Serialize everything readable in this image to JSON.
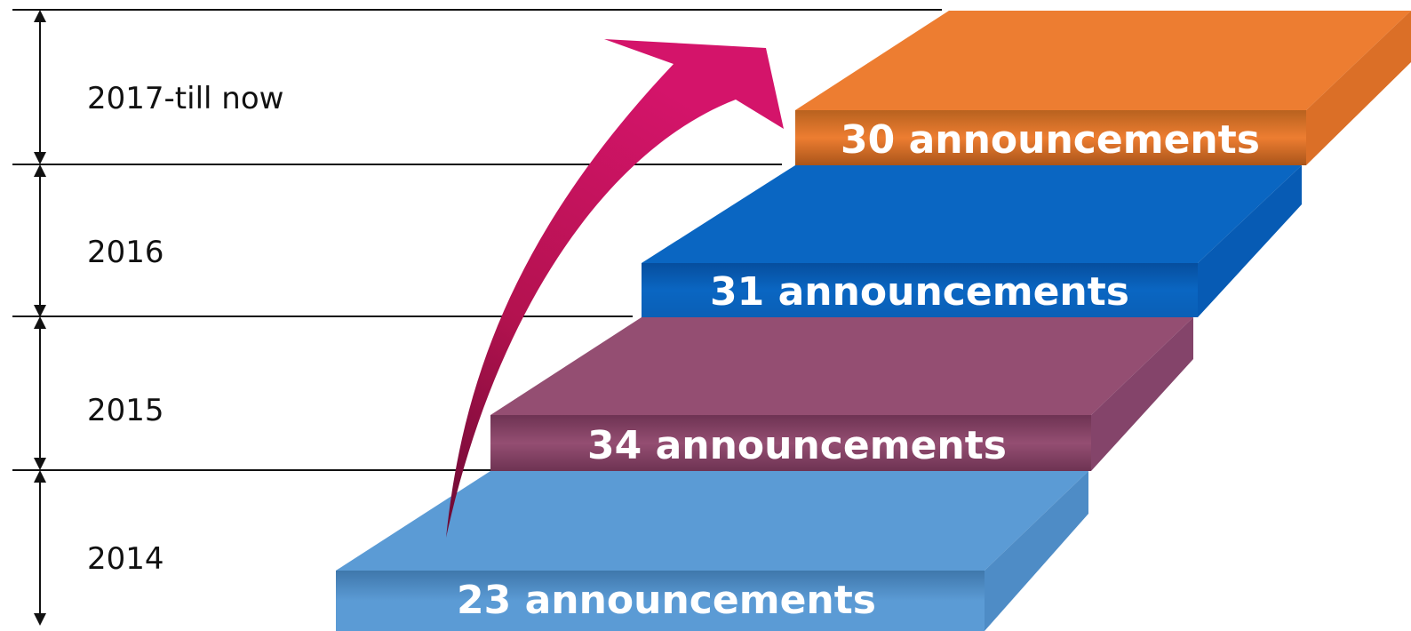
{
  "periods": [
    {
      "year": "2017-till now",
      "count_label": "30 announcements",
      "count": 30
    },
    {
      "year": "2016",
      "count_label": "31 announcements",
      "count": 31
    },
    {
      "year": "2015",
      "count_label": "34 announcements",
      "count": 34
    },
    {
      "year": "2014",
      "count_label": "23 announcements",
      "count": 23
    }
  ],
  "colors": {
    "step_2017": {
      "top": "#ED7D31",
      "front": "#B35A1C",
      "side": "#C8621F"
    },
    "step_2016": {
      "top": "#0A66C2",
      "front": "#064A96",
      "side": "#0558B0"
    },
    "step_2015": {
      "top": "#944E72",
      "front": "#6F3353",
      "side": "#7F3E60"
    },
    "step_2014": {
      "top": "#5B9BD5",
      "front": "#3E76A8",
      "side": "#4A86BE"
    },
    "arrow": "#C8145E",
    "arrow_dark": "#7A0C3A",
    "lines": "#111111"
  }
}
